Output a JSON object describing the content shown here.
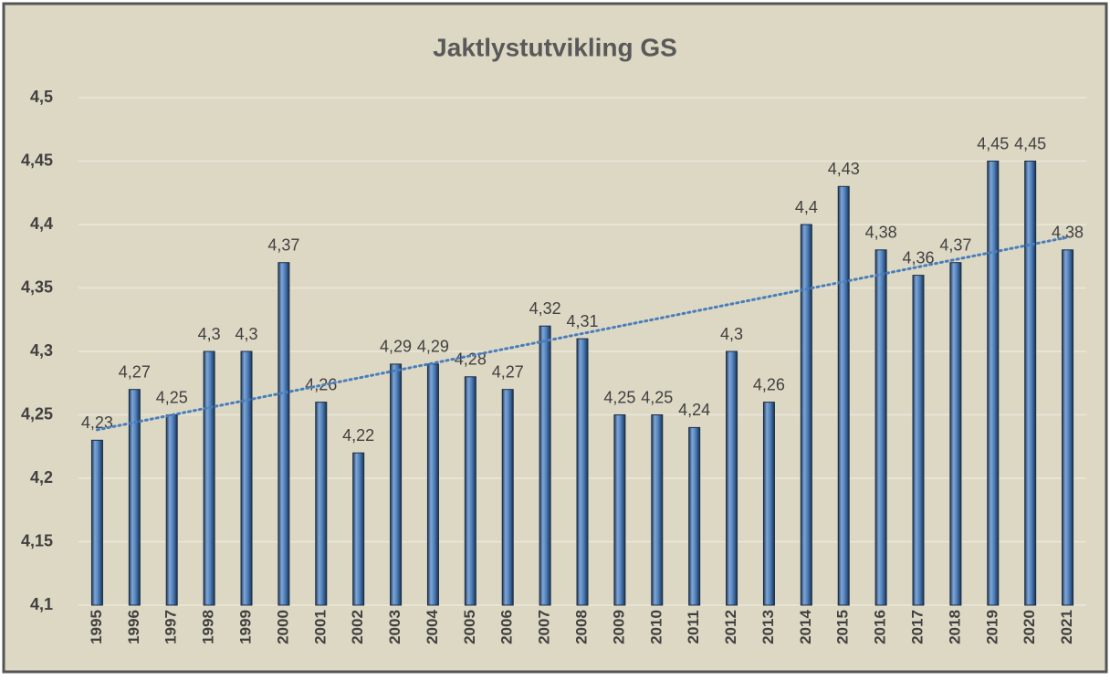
{
  "chart_data": {
    "type": "bar",
    "title": "Jaktlystutvikling GS",
    "categories": [
      "1995",
      "1996",
      "1997",
      "1998",
      "1999",
      "2000",
      "2001",
      "2002",
      "2003",
      "2004",
      "2005",
      "2006",
      "2007",
      "2008",
      "2009",
      "2010",
      "2011",
      "2012",
      "2013",
      "2014",
      "2015",
      "2016",
      "2017",
      "2018",
      "2019",
      "2020",
      "2021"
    ],
    "values": [
      4.23,
      4.27,
      4.25,
      4.3,
      4.3,
      4.37,
      4.26,
      4.22,
      4.29,
      4.29,
      4.28,
      4.27,
      4.32,
      4.31,
      4.25,
      4.25,
      4.24,
      4.3,
      4.26,
      4.4,
      4.43,
      4.38,
      4.36,
      4.37,
      4.45,
      4.45,
      4.38
    ],
    "value_labels": [
      "4,23",
      "4,27",
      "4,25",
      "4,3",
      "4,3",
      "4,37",
      "4,26",
      "4,22",
      "4,29",
      "4,29",
      "4,28",
      "4,27",
      "4,32",
      "4,31",
      "4,25",
      "4,25",
      "4,24",
      "4,3",
      "4,26",
      "4,4",
      "4,43",
      "4,38",
      "4,36",
      "4,37",
      "4,45",
      "4,45",
      "4,38"
    ],
    "color": "#4f81bd",
    "ylim": [
      4.1,
      4.5
    ],
    "yticks": [
      {
        "value": 4.1,
        "label": "4,1"
      },
      {
        "value": 4.15,
        "label": "4,15"
      },
      {
        "value": 4.2,
        "label": "4,2"
      },
      {
        "value": 4.25,
        "label": "4,25"
      },
      {
        "value": 4.3,
        "label": "4,3"
      },
      {
        "value": 4.35,
        "label": "4,35"
      },
      {
        "value": 4.4,
        "label": "4,4"
      },
      {
        "value": 4.45,
        "label": "4,45"
      },
      {
        "value": 4.5,
        "label": "4,5"
      }
    ],
    "grid": true,
    "trendline": true,
    "trendline_color": "#4a7ebb"
  }
}
